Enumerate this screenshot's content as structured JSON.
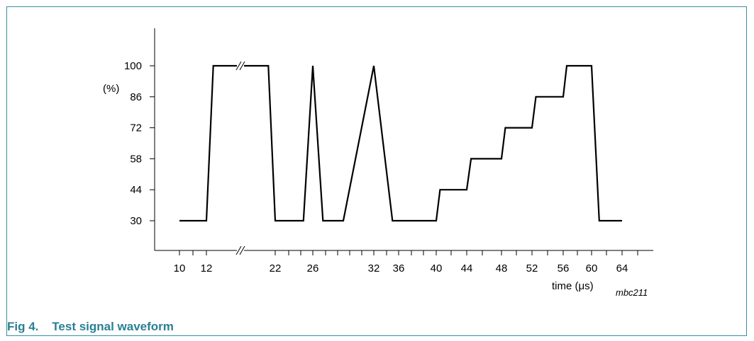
{
  "figure": {
    "caption": "Fig 4.    Test signal waveform",
    "code": "mbc211"
  },
  "chart_data": {
    "type": "line",
    "xlabel": "time (μs)",
    "ylabel": "(%)",
    "x_ticks": [
      "10",
      "12",
      "22",
      "26",
      "32",
      "36",
      "40",
      "44",
      "48",
      "52",
      "56",
      "60",
      "64"
    ],
    "y_ticks": [
      "30",
      "44",
      "58",
      "72",
      "86",
      "100"
    ],
    "axis_break": {
      "x_between": [
        12,
        22
      ],
      "symbol": "//"
    },
    "series": [
      {
        "points": [
          {
            "x": "10",
            "y": 30
          },
          {
            "x": "12",
            "y": 30
          },
          {
            "x": "13",
            "y": 100
          },
          {
            "x": "21",
            "y": 100
          },
          {
            "x": "22",
            "y": 30
          },
          {
            "x": "25",
            "y": 30
          },
          {
            "x": "26",
            "y": 100
          },
          {
            "x": "27",
            "y": 30
          },
          {
            "x": "29",
            "y": 30
          },
          {
            "x": "32",
            "y": 100
          },
          {
            "x": "35",
            "y": 30
          },
          {
            "x": "40",
            "y": 30
          },
          {
            "x": "40.5",
            "y": 44
          },
          {
            "x": "44",
            "y": 44
          },
          {
            "x": "44.5",
            "y": 58
          },
          {
            "x": "48",
            "y": 58
          },
          {
            "x": "48.5",
            "y": 72
          },
          {
            "x": "52",
            "y": 72
          },
          {
            "x": "52.5",
            "y": 86
          },
          {
            "x": "56",
            "y": 86
          },
          {
            "x": "56.5",
            "y": 100
          },
          {
            "x": "60",
            "y": 100
          },
          {
            "x": "61",
            "y": 30
          },
          {
            "x": "64",
            "y": 30
          }
        ]
      }
    ]
  }
}
